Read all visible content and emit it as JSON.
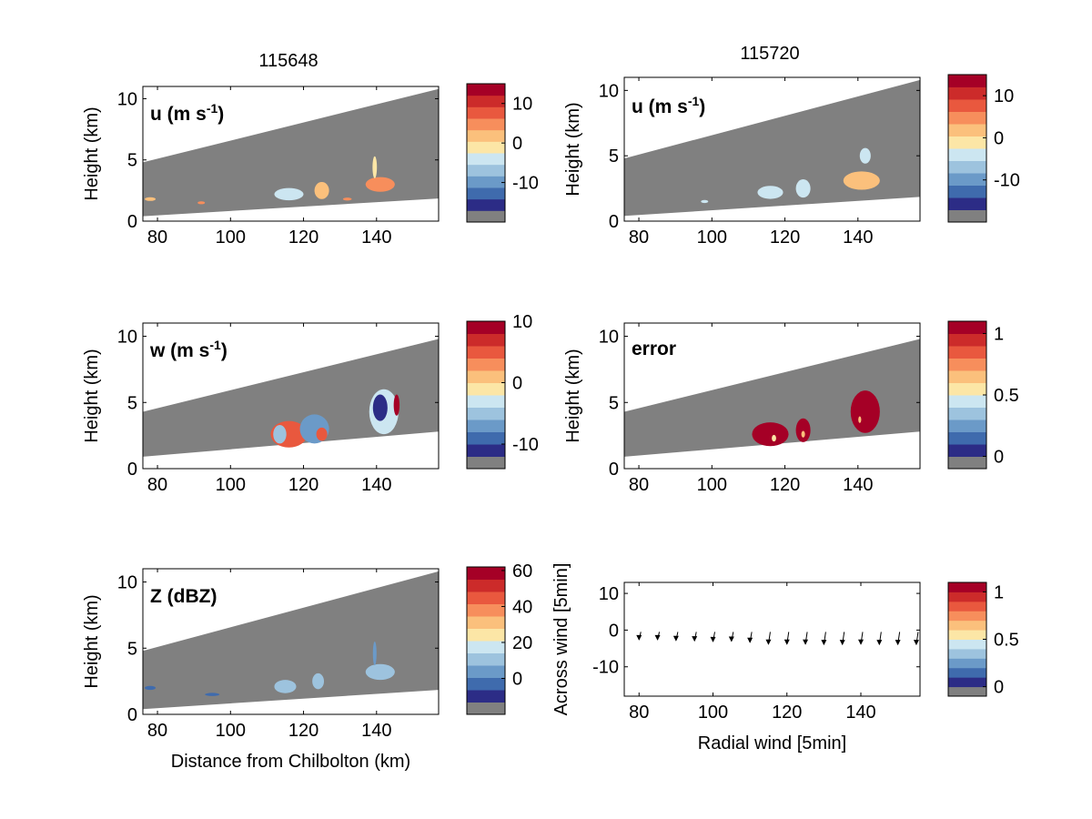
{
  "colormap": [
    "#808080",
    "#2c2c86",
    "#3f6bad",
    "#6b9ac8",
    "#9dc3de",
    "#cce6f1",
    "#fce6a6",
    "#fbc07c",
    "#f78e5c",
    "#e9583e",
    "#cc2b2a",
    "#a50026"
  ],
  "terrain_color": "#808080",
  "column_titles": [
    "115648",
    "115720"
  ],
  "chart_data": [
    {
      "type": "heatmap",
      "panel": "u-115648",
      "label_main": "u (m s",
      "label_sup": "-1",
      "label_close": ")",
      "ylabel": "Height (km)",
      "xlabel": "",
      "xlim": [
        76,
        157
      ],
      "ylim": [
        0,
        11
      ],
      "xticks": [
        80,
        100,
        120,
        140
      ],
      "yticks": [
        0,
        5,
        10
      ],
      "swath": {
        "top": [
          [
            76,
            4.8
          ],
          [
            157,
            10.8
          ]
        ],
        "bottom": [
          [
            76,
            0.4
          ],
          [
            157,
            1.85
          ]
        ]
      },
      "colorbar": {
        "range": [
          -20,
          15
        ],
        "ticks": [
          10,
          0,
          -10
        ]
      },
      "features": [
        {
          "x": 116,
          "y": 2.2,
          "rx": 4,
          "ry": 0.5,
          "value": -3
        },
        {
          "x": 125,
          "y": 2.5,
          "rx": 2,
          "ry": 0.7,
          "value": 3
        },
        {
          "x": 141,
          "y": 3.0,
          "rx": 4,
          "ry": 0.6,
          "value": 4
        },
        {
          "x": 139.5,
          "y": 4.4,
          "rx": 0.6,
          "ry": 0.9,
          "value": -2
        },
        {
          "x": 78,
          "y": 1.8,
          "rx": 1.5,
          "ry": 0.15,
          "value": 3
        },
        {
          "x": 92,
          "y": 1.5,
          "rx": 1.0,
          "ry": 0.12,
          "value": 4
        },
        {
          "x": 132,
          "y": 1.8,
          "rx": 1.2,
          "ry": 0.12,
          "value": 5
        }
      ]
    },
    {
      "type": "heatmap",
      "panel": "u-115720",
      "label_main": "u (m s",
      "label_sup": "-1",
      "label_close": ")",
      "ylabel": "Height (km)",
      "xlabel": "",
      "xlim": [
        76,
        157
      ],
      "ylim": [
        0,
        11
      ],
      "xticks": [
        80,
        100,
        120,
        140
      ],
      "yticks": [
        0,
        5,
        10
      ],
      "swath": {
        "top": [
          [
            76,
            4.8
          ],
          [
            157,
            10.8
          ]
        ],
        "bottom": [
          [
            76,
            0.4
          ],
          [
            157,
            1.85
          ]
        ]
      },
      "colorbar": {
        "range": [
          -20,
          15
        ],
        "ticks": [
          10,
          0,
          -10
        ]
      },
      "features": [
        {
          "x": 116,
          "y": 2.2,
          "rx": 3.5,
          "ry": 0.5,
          "value": -3
        },
        {
          "x": 125,
          "y": 2.5,
          "rx": 2,
          "ry": 0.7,
          "value": -3
        },
        {
          "x": 141,
          "y": 3.1,
          "rx": 5,
          "ry": 0.7,
          "value": 3
        },
        {
          "x": 142,
          "y": 5.0,
          "rx": 1.5,
          "ry": 0.6,
          "value": -3
        },
        {
          "x": 98,
          "y": 1.5,
          "rx": 1.0,
          "ry": 0.12,
          "value": -3
        }
      ]
    },
    {
      "type": "heatmap",
      "panel": "w-115648",
      "label_main": "w (m s",
      "label_sup": "-1",
      "label_close": ")",
      "ylabel": "Height (km)",
      "xlabel": "",
      "xlim": [
        76,
        157
      ],
      "ylim": [
        0,
        11
      ],
      "xticks": [
        80,
        100,
        120,
        140
      ],
      "yticks": [
        0,
        5,
        10
      ],
      "swath": {
        "top": [
          [
            76,
            4.3
          ],
          [
            157,
            9.8
          ]
        ],
        "bottom": [
          [
            76,
            0.9
          ],
          [
            157,
            2.8
          ]
        ]
      },
      "colorbar": {
        "range": [
          -14,
          10
        ],
        "ticks": [
          10,
          0,
          -10
        ]
      },
      "features": [
        {
          "x": 116,
          "y": 2.6,
          "rx": 5,
          "ry": 1.0,
          "value": 4
        },
        {
          "x": 113.5,
          "y": 2.6,
          "rx": 1.8,
          "ry": 0.7,
          "value": -6
        },
        {
          "x": 123,
          "y": 3.0,
          "rx": 4,
          "ry": 1.1,
          "value": -8
        },
        {
          "x": 125,
          "y": 2.6,
          "rx": 1.5,
          "ry": 0.5,
          "value": 5
        },
        {
          "x": 142,
          "y": 4.3,
          "rx": 4,
          "ry": 1.7,
          "value": -3
        },
        {
          "x": 141,
          "y": 4.6,
          "rx": 2,
          "ry": 1.0,
          "value": -12
        },
        {
          "x": 145.5,
          "y": 4.8,
          "rx": 0.8,
          "ry": 0.8,
          "value": 9
        }
      ]
    },
    {
      "type": "heatmap",
      "panel": "error-115720",
      "label_main": "error",
      "label_sup": "",
      "label_close": "",
      "ylabel": "Height (km)",
      "xlabel": "",
      "xlim": [
        76,
        157
      ],
      "ylim": [
        0,
        11
      ],
      "xticks": [
        80,
        100,
        120,
        140
      ],
      "yticks": [
        0,
        5,
        10
      ],
      "swath": {
        "top": [
          [
            76,
            4.3
          ],
          [
            157,
            9.8
          ]
        ],
        "bottom": [
          [
            76,
            0.9
          ],
          [
            157,
            2.8
          ]
        ]
      },
      "colorbar": {
        "range": [
          -0.1,
          1.1
        ],
        "ticks": [
          1,
          0.5,
          0
        ]
      },
      "features": [
        {
          "x": 116,
          "y": 2.6,
          "rx": 5,
          "ry": 0.9,
          "value": 1.05
        },
        {
          "x": 125,
          "y": 2.9,
          "rx": 2,
          "ry": 0.9,
          "value": 1.05
        },
        {
          "x": 142,
          "y": 4.3,
          "rx": 4,
          "ry": 1.6,
          "value": 1.05
        },
        {
          "x": 117,
          "y": 2.3,
          "rx": 0.6,
          "ry": 0.25,
          "value": 0.6
        },
        {
          "x": 125,
          "y": 2.6,
          "rx": 0.5,
          "ry": 0.25,
          "value": 0.65
        },
        {
          "x": 140.5,
          "y": 3.7,
          "rx": 0.4,
          "ry": 0.25,
          "value": 0.7
        }
      ]
    },
    {
      "type": "heatmap",
      "panel": "z-115648",
      "label_main": "Z (dBZ)",
      "label_sup": "",
      "label_close": "",
      "ylabel": "Height (km)",
      "xlabel": "Distance from Chilbolton (km)",
      "xlim": [
        76,
        157
      ],
      "ylim": [
        0,
        11
      ],
      "xticks": [
        80,
        100,
        120,
        140
      ],
      "yticks": [
        0,
        5,
        10
      ],
      "swath": {
        "top": [
          [
            76,
            4.8
          ],
          [
            157,
            10.8
          ]
        ],
        "bottom": [
          [
            76,
            0.4
          ],
          [
            157,
            1.85
          ]
        ]
      },
      "colorbar": {
        "range": [
          -20,
          62
        ],
        "ticks": [
          60,
          40,
          20,
          0
        ]
      },
      "features": [
        {
          "x": 115,
          "y": 2.1,
          "rx": 3,
          "ry": 0.5,
          "value": 8
        },
        {
          "x": 124,
          "y": 2.5,
          "rx": 1.6,
          "ry": 0.6,
          "value": 8
        },
        {
          "x": 141,
          "y": 3.2,
          "rx": 4,
          "ry": 0.6,
          "value": 8
        },
        {
          "x": 139.5,
          "y": 4.6,
          "rx": 0.5,
          "ry": 0.9,
          "value": 5
        },
        {
          "x": 78,
          "y": 2.0,
          "rx": 1.5,
          "ry": 0.15,
          "value": -3
        },
        {
          "x": 95,
          "y": 1.5,
          "rx": 2.0,
          "ry": 0.12,
          "value": -3
        }
      ]
    },
    {
      "type": "scatter",
      "panel": "wind-vectors",
      "ylabel": "Across wind [5min]",
      "xlabel": "Radial wind [5min]",
      "xlim": [
        76,
        156
      ],
      "ylim": [
        -18,
        13
      ],
      "xticks": [
        80,
        100,
        120,
        140
      ],
      "yticks": [
        10,
        0,
        -10
      ],
      "colorbar": {
        "range": [
          -0.1,
          1.1
        ],
        "ticks": [
          1,
          0.5,
          0
        ]
      },
      "x": [
        80,
        85,
        90,
        95,
        100,
        105,
        110,
        115,
        120,
        125,
        130,
        135,
        140,
        145,
        150,
        155
      ],
      "y": [
        -2.6,
        -2.6,
        -2.8,
        -2.9,
        -3.1,
        -3.0,
        -3.3,
        -3.8,
        -3.8,
        -3.8,
        -3.9,
        -3.9,
        -3.8,
        -3.9,
        -3.9,
        -3.9
      ]
    }
  ]
}
